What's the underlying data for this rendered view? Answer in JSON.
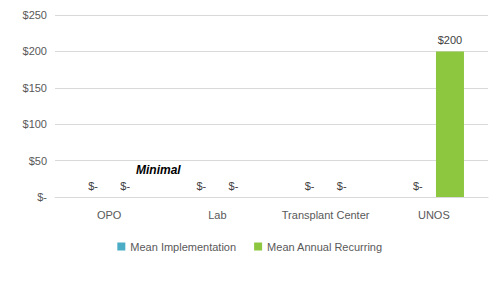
{
  "chart_data": {
    "type": "bar",
    "categories": [
      "OPO",
      "Lab",
      "Transplant Center",
      "UNOS"
    ],
    "series": [
      {
        "name": "Mean Implementation",
        "color": "#4bacc6",
        "values": [
          0,
          0,
          0,
          0
        ],
        "value_labels": [
          "$-",
          "$-",
          "$-",
          "$-"
        ]
      },
      {
        "name": "Mean Annual Recurring",
        "color": "#8dc63f",
        "values": [
          0,
          0,
          0,
          200
        ],
        "value_labels": [
          "$-",
          "$-",
          "$-",
          "$200"
        ]
      }
    ],
    "ylim": [
      0,
      250
    ],
    "yticks": [
      {
        "value": 0,
        "label": "$-"
      },
      {
        "value": 50,
        "label": "$50"
      },
      {
        "value": 100,
        "label": "$100"
      },
      {
        "value": 150,
        "label": "$150"
      },
      {
        "value": 200,
        "label": "$200"
      },
      {
        "value": 250,
        "label": "$250"
      }
    ],
    "annotation": "Minimal",
    "grid": true,
    "legend": "bottom",
    "data_labels": true
  }
}
